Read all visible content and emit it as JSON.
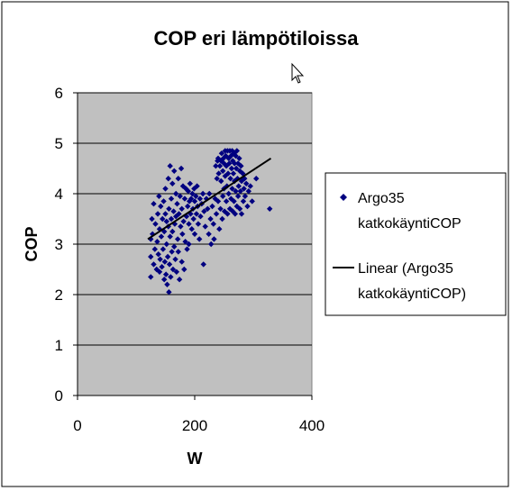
{
  "chart_data": {
    "type": "scatter",
    "title": "COP eri lämpötiloissa",
    "xlabel": "W",
    "ylabel": "COP",
    "xlim": [
      0,
      400
    ],
    "ylim": [
      0,
      6
    ],
    "x_ticks": [
      "0",
      "200",
      "400"
    ],
    "y_ticks": [
      "0",
      "1",
      "2",
      "3",
      "4",
      "5",
      "6"
    ],
    "grid": "horizontal major gridlines",
    "plot_background": "#c0c0c0",
    "legend_position": "right",
    "legend": [
      {
        "lines": [
          "Argo35",
          "katkokäyntiCOP"
        ],
        "marker": "diamond",
        "color": "#000080"
      },
      {
        "lines": [
          "Linear (Argo35",
          "katkokäyntiCOP)"
        ],
        "marker": "line",
        "color": "#000000"
      }
    ],
    "trendline": {
      "x": [
        120,
        330
      ],
      "y": [
        3.1,
        4.7
      ],
      "color": "#000000"
    },
    "series": [
      {
        "color": "#000080",
        "points": [
          [
            125,
            2.35
          ],
          [
            125,
            2.75
          ],
          [
            125,
            3.1
          ],
          [
            127,
            3.5
          ],
          [
            128,
            3.2
          ],
          [
            130,
            2.6
          ],
          [
            130,
            3.8
          ],
          [
            132,
            2.9
          ],
          [
            133,
            3.4
          ],
          [
            135,
            2.5
          ],
          [
            136,
            3.05
          ],
          [
            137,
            3.6
          ],
          [
            138,
            2.8
          ],
          [
            139,
            3.95
          ],
          [
            140,
            2.45
          ],
          [
            140,
            3.3
          ],
          [
            141,
            2.7
          ],
          [
            142,
            3.75
          ],
          [
            143,
            3.15
          ],
          [
            144,
            2.55
          ],
          [
            145,
            3.5
          ],
          [
            146,
            2.9
          ],
          [
            147,
            3.85
          ],
          [
            148,
            2.3
          ],
          [
            148,
            3.25
          ],
          [
            149,
            2.65
          ],
          [
            150,
            3.6
          ],
          [
            150,
            4.1
          ],
          [
            151,
            2.4
          ],
          [
            152,
            3.0
          ],
          [
            152,
            3.45
          ],
          [
            153,
            2.2
          ],
          [
            154,
            2.75
          ],
          [
            155,
            3.35
          ],
          [
            155,
            4.3
          ],
          [
            156,
            2.05
          ],
          [
            156,
            3.7
          ],
          [
            157,
            2.6
          ],
          [
            158,
            3.15
          ],
          [
            158,
            4.55
          ],
          [
            159,
            2.35
          ],
          [
            160,
            3.5
          ],
          [
            160,
            3.9
          ],
          [
            161,
            2.85
          ],
          [
            162,
            4.2
          ],
          [
            162,
            3.25
          ],
          [
            163,
            2.5
          ],
          [
            164,
            3.65
          ],
          [
            165,
            4.45
          ],
          [
            165,
            2.95
          ],
          [
            166,
            3.4
          ],
          [
            167,
            2.7
          ],
          [
            168,
            4.0
          ],
          [
            168,
            3.55
          ],
          [
            169,
            2.45
          ],
          [
            170,
            3.8
          ],
          [
            171,
            3.1
          ],
          [
            172,
            4.3
          ],
          [
            172,
            2.85
          ],
          [
            173,
            3.6
          ],
          [
            174,
            2.3
          ],
          [
            175,
            3.95
          ],
          [
            176,
            3.35
          ],
          [
            177,
            4.5
          ],
          [
            178,
            2.65
          ],
          [
            178,
            3.7
          ],
          [
            179,
            3.2
          ],
          [
            180,
            4.15
          ],
          [
            181,
            3.45
          ],
          [
            182,
            2.5
          ],
          [
            183,
            3.9
          ],
          [
            184,
            3.05
          ],
          [
            185,
            4.1
          ],
          [
            186,
            3.55
          ],
          [
            187,
            2.9
          ],
          [
            188,
            3.75
          ],
          [
            189,
            4.05
          ],
          [
            190,
            3.4
          ],
          [
            190,
            3.0
          ],
          [
            191,
            3.85
          ],
          [
            192,
            4.2
          ],
          [
            193,
            3.6
          ],
          [
            194,
            3.9
          ],
          [
            195,
            3.3
          ],
          [
            196,
            4.0
          ],
          [
            197,
            3.7
          ],
          [
            198,
            3.5
          ],
          [
            199,
            4.1
          ],
          [
            200,
            3.85
          ],
          [
            200,
            3.2
          ],
          [
            202,
            3.95
          ],
          [
            203,
            3.6
          ],
          [
            204,
            4.15
          ],
          [
            205,
            3.75
          ],
          [
            206,
            3.4
          ],
          [
            208,
            3.1
          ],
          [
            209,
            3.9
          ],
          [
            210,
            3.55
          ],
          [
            212,
            3.8
          ],
          [
            214,
            4.0
          ],
          [
            215,
            2.6
          ],
          [
            216,
            3.65
          ],
          [
            218,
            3.35
          ],
          [
            220,
            3.9
          ],
          [
            222,
            3.7
          ],
          [
            224,
            3.2
          ],
          [
            225,
            4.0
          ],
          [
            227,
            3.5
          ],
          [
            228,
            3.0
          ],
          [
            230,
            3.75
          ],
          [
            232,
            3.4
          ],
          [
            233,
            3.1
          ],
          [
            235,
            3.9
          ],
          [
            236,
            4.55
          ],
          [
            237,
            3.6
          ],
          [
            238,
            4.3
          ],
          [
            239,
            4.65
          ],
          [
            240,
            3.85
          ],
          [
            240,
            4.7
          ],
          [
            241,
            4.4
          ],
          [
            242,
            3.3
          ],
          [
            243,
            4.55
          ],
          [
            244,
            3.7
          ],
          [
            245,
            4.65
          ],
          [
            245,
            4.25
          ],
          [
            246,
            4.8
          ],
          [
            247,
            3.5
          ],
          [
            248,
            4.45
          ],
          [
            248,
            3.95
          ],
          [
            249,
            4.7
          ],
          [
            250,
            4.1
          ],
          [
            250,
            4.6
          ],
          [
            251,
            3.65
          ],
          [
            252,
            4.85
          ],
          [
            252,
            4.35
          ],
          [
            253,
            4.75
          ],
          [
            254,
            3.85
          ],
          [
            254,
            4.55
          ],
          [
            255,
            4.15
          ],
          [
            256,
            4.85
          ],
          [
            256,
            3.6
          ],
          [
            257,
            4.4
          ],
          [
            258,
            4.7
          ],
          [
            258,
            4.0
          ],
          [
            259,
            4.6
          ],
          [
            260,
            3.7
          ],
          [
            260,
            4.85
          ],
          [
            261,
            4.3
          ],
          [
            262,
            4.75
          ],
          [
            262,
            3.9
          ],
          [
            263,
            4.5
          ],
          [
            264,
            4.85
          ],
          [
            264,
            4.1
          ],
          [
            265,
            3.65
          ],
          [
            265,
            4.65
          ],
          [
            266,
            4.4
          ],
          [
            267,
            4.8
          ],
          [
            267,
            3.85
          ],
          [
            268,
            4.25
          ],
          [
            268,
            4.6
          ],
          [
            269,
            3.6
          ],
          [
            270,
            4.75
          ],
          [
            270,
            4.05
          ],
          [
            271,
            4.5
          ],
          [
            272,
            3.75
          ],
          [
            272,
            4.85
          ],
          [
            273,
            4.3
          ],
          [
            274,
            4.6
          ],
          [
            274,
            3.95
          ],
          [
            275,
            4.15
          ],
          [
            276,
            4.7
          ],
          [
            277,
            3.7
          ],
          [
            277,
            4.45
          ],
          [
            278,
            4.05
          ],
          [
            279,
            4.55
          ],
          [
            280,
            3.6
          ],
          [
            280,
            4.25
          ],
          [
            282,
            4.4
          ],
          [
            283,
            3.85
          ],
          [
            284,
            4.1
          ],
          [
            285,
            4.3
          ],
          [
            286,
            3.95
          ],
          [
            288,
            4.2
          ],
          [
            290,
            3.75
          ],
          [
            292,
            4.05
          ],
          [
            295,
            4.15
          ],
          [
            298,
            3.85
          ],
          [
            305,
            4.3
          ],
          [
            328,
            3.7
          ]
        ]
      }
    ]
  }
}
